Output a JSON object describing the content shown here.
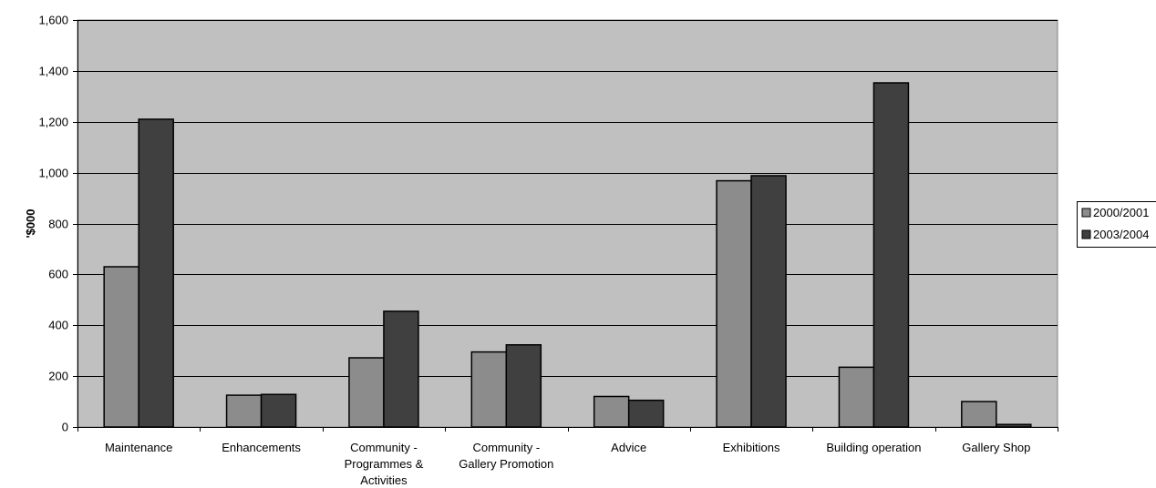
{
  "chart_data": {
    "type": "bar",
    "ylabel": "'$000",
    "ylim": [
      0,
      1600
    ],
    "yticks": [
      0,
      200,
      400,
      600,
      800,
      1000,
      1200,
      1400,
      1600
    ],
    "ytick_labels": [
      "0",
      "200",
      "400",
      "600",
      "800",
      "1,000",
      "1,200",
      "1,400",
      "1,600"
    ],
    "grid": true,
    "legend_position": "right",
    "plot_background": "#c0c0c0",
    "categories": [
      "Maintenance",
      "Enhancements",
      "Community - Programmes & Activities",
      "Community - Gallery Promotion",
      "Advice",
      "Exhibitions",
      "Building operation",
      "Gallery Shop"
    ],
    "category_label_lines": [
      [
        "Maintenance"
      ],
      [
        "Enhancements"
      ],
      [
        "Community -",
        "Programmes &",
        "Activities"
      ],
      [
        "Community -",
        "Gallery Promotion"
      ],
      [
        "Advice"
      ],
      [
        "Exhibitions"
      ],
      [
        "Building operation"
      ],
      [
        "Gallery Shop"
      ]
    ],
    "series": [
      {
        "name": "2000/2001",
        "color": "#8c8c8c",
        "values": [
          630,
          125,
          272,
          295,
          120,
          968,
          235,
          100
        ]
      },
      {
        "name": "2003/2004",
        "color": "#404040",
        "values": [
          1210,
          128,
          455,
          323,
          105,
          988,
          1353,
          10
        ]
      }
    ]
  }
}
